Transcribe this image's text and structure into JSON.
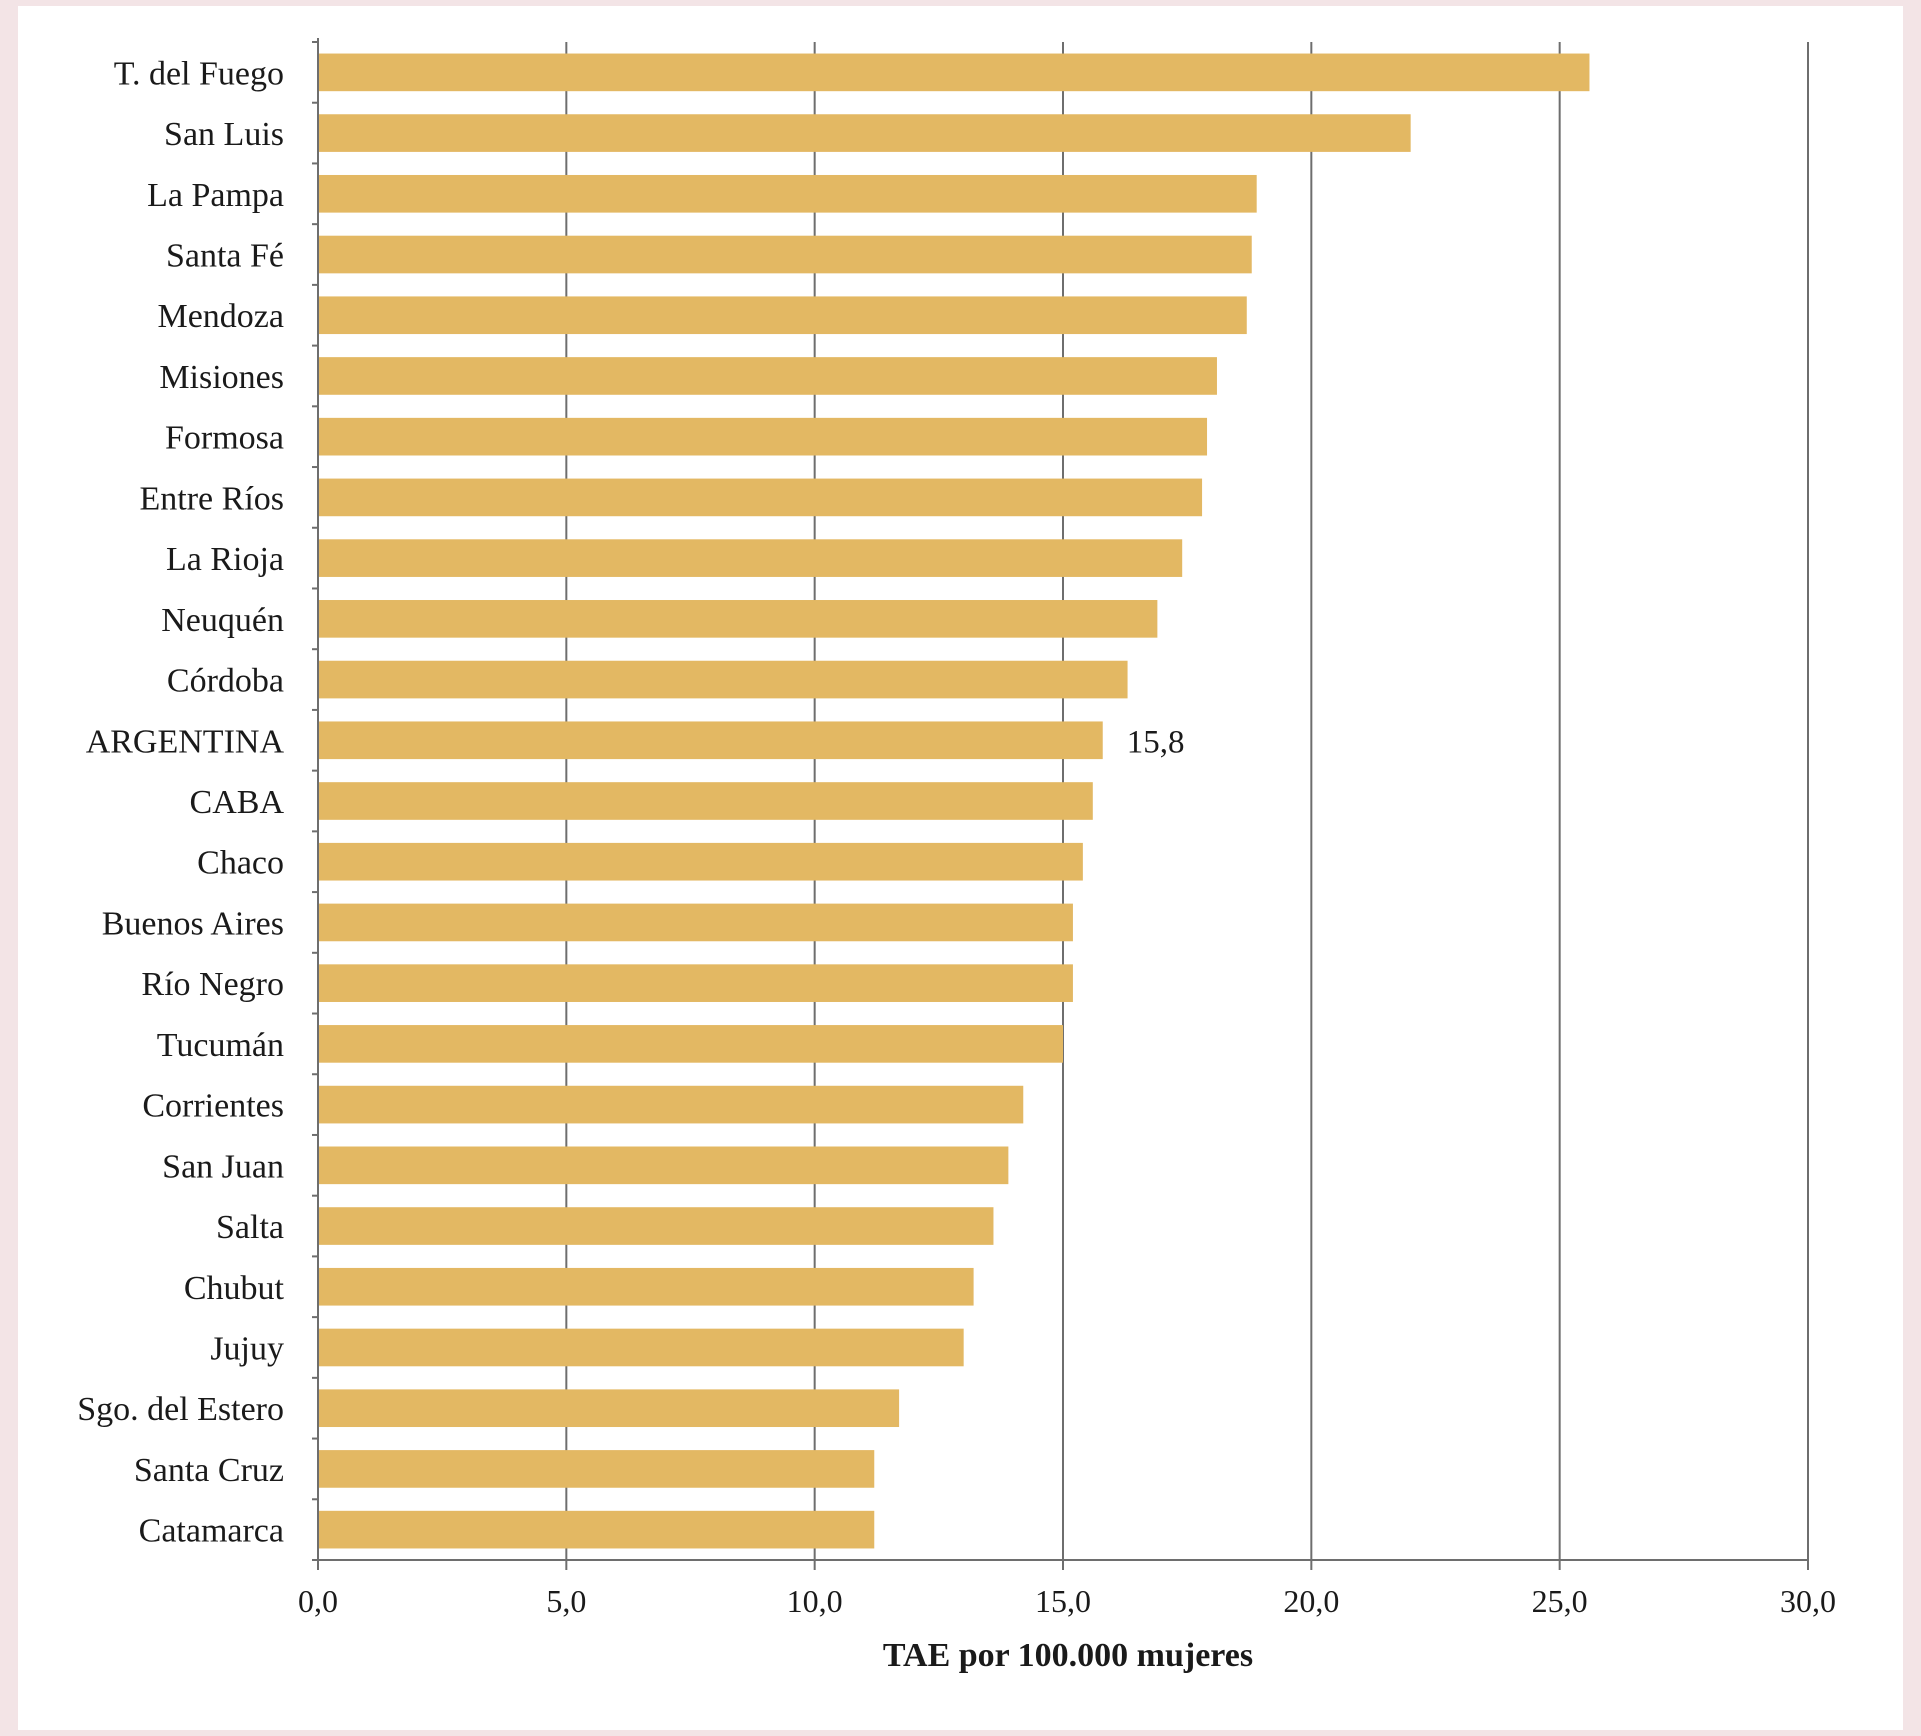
{
  "chart_data": {
    "type": "bar",
    "orientation": "horizontal",
    "categories": [
      "T. del Fuego",
      "San Luis",
      "La Pampa",
      "Santa Fé",
      "Mendoza",
      "Misiones",
      "Formosa",
      "Entre Ríos",
      "La Rioja",
      "Neuquén",
      "Córdoba",
      "ARGENTINA",
      "CABA",
      "Chaco",
      "Buenos Aires",
      "Río Negro",
      "Tucumán",
      "Corrientes",
      "San Juan",
      "Salta",
      "Chubut",
      "Jujuy",
      "Sgo. del Estero",
      "Santa Cruz",
      "Catamarca"
    ],
    "values": [
      25.6,
      22.0,
      18.9,
      18.8,
      18.7,
      18.1,
      17.9,
      17.8,
      17.4,
      16.9,
      16.3,
      15.8,
      15.6,
      15.4,
      15.2,
      15.2,
      15.0,
      14.2,
      13.9,
      13.6,
      13.2,
      13.0,
      11.7,
      11.2,
      11.2
    ],
    "data_labels": [
      {
        "category": "ARGENTINA",
        "text": "15,8"
      }
    ],
    "xlabel": "TAE por 100.000 mujeres",
    "ylabel": "",
    "xlim": [
      0,
      30
    ],
    "xticks": [
      "0,0",
      "5,0",
      "10,0",
      "15,0",
      "20,0",
      "25,0",
      "30,0"
    ],
    "grid": "vertical",
    "bar_color": "#e3b863",
    "grid_color": "#6e6e6e"
  }
}
